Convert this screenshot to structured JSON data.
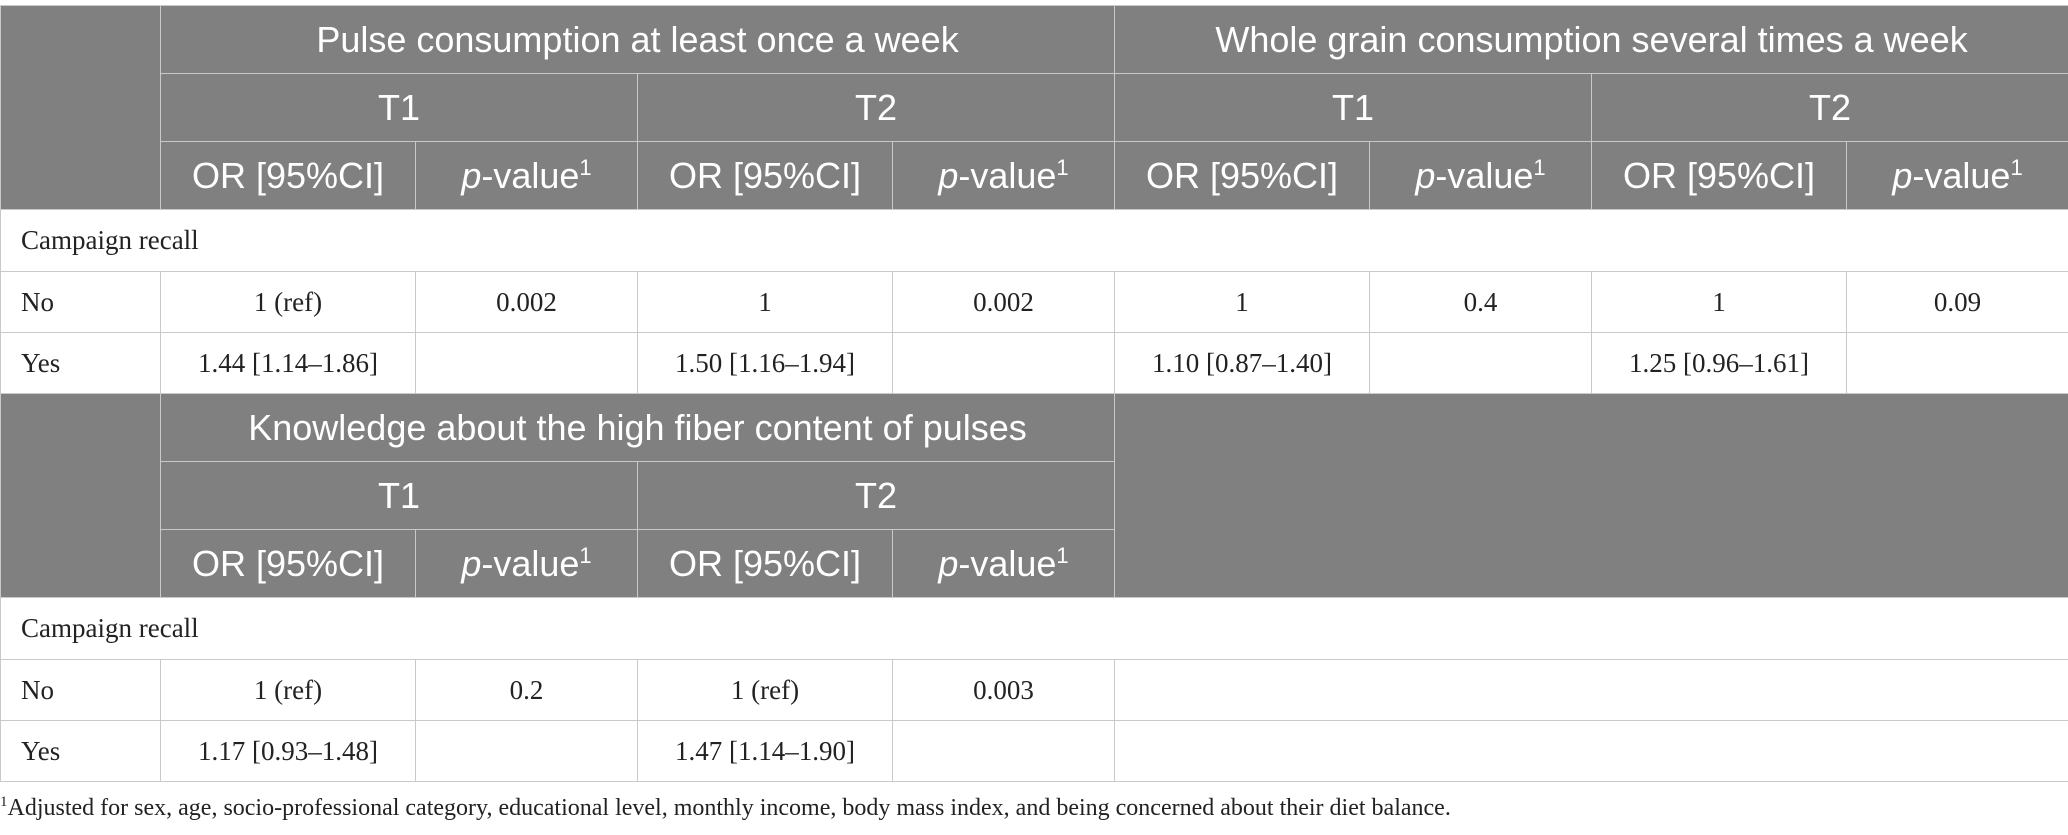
{
  "table1": {
    "groups": [
      "Pulse consumption at least once a week",
      "Whole grain consumption several times a week"
    ],
    "times": [
      "T1",
      "T2",
      "T1",
      "T2"
    ],
    "or_header": "OR [95%CI]",
    "pvalue_prefix": "p",
    "pvalue_suffix": "-value",
    "pvalue_sup": "1",
    "section_label": "Campaign recall",
    "rows": [
      {
        "label": "No",
        "cells": [
          "1 (ref)",
          "0.002",
          "1",
          "0.002",
          "1",
          "0.4",
          "1",
          "0.09"
        ]
      },
      {
        "label": "Yes",
        "cells": [
          "1.44 [1.14–1.86]",
          "",
          "1.50 [1.16–1.94]",
          "",
          "1.10 [0.87–1.40]",
          "",
          "1.25 [0.96–1.61]",
          ""
        ]
      }
    ]
  },
  "table2": {
    "group": "Knowledge about the high fiber content of pulses",
    "times": [
      "T1",
      "T2"
    ],
    "section_label": "Campaign recall",
    "rows": [
      {
        "label": "No",
        "cells": [
          "1 (ref)",
          "0.2",
          "1 (ref)",
          "0.003"
        ]
      },
      {
        "label": "Yes",
        "cells": [
          "1.17 [0.93–1.48]",
          "",
          "1.47 [1.14–1.90]",
          ""
        ]
      }
    ]
  },
  "footnote": {
    "marker": "1",
    "text": "Adjusted for sex, age, socio-professional category, educational level, monthly income, body mass index, and being concerned about their diet balance."
  }
}
